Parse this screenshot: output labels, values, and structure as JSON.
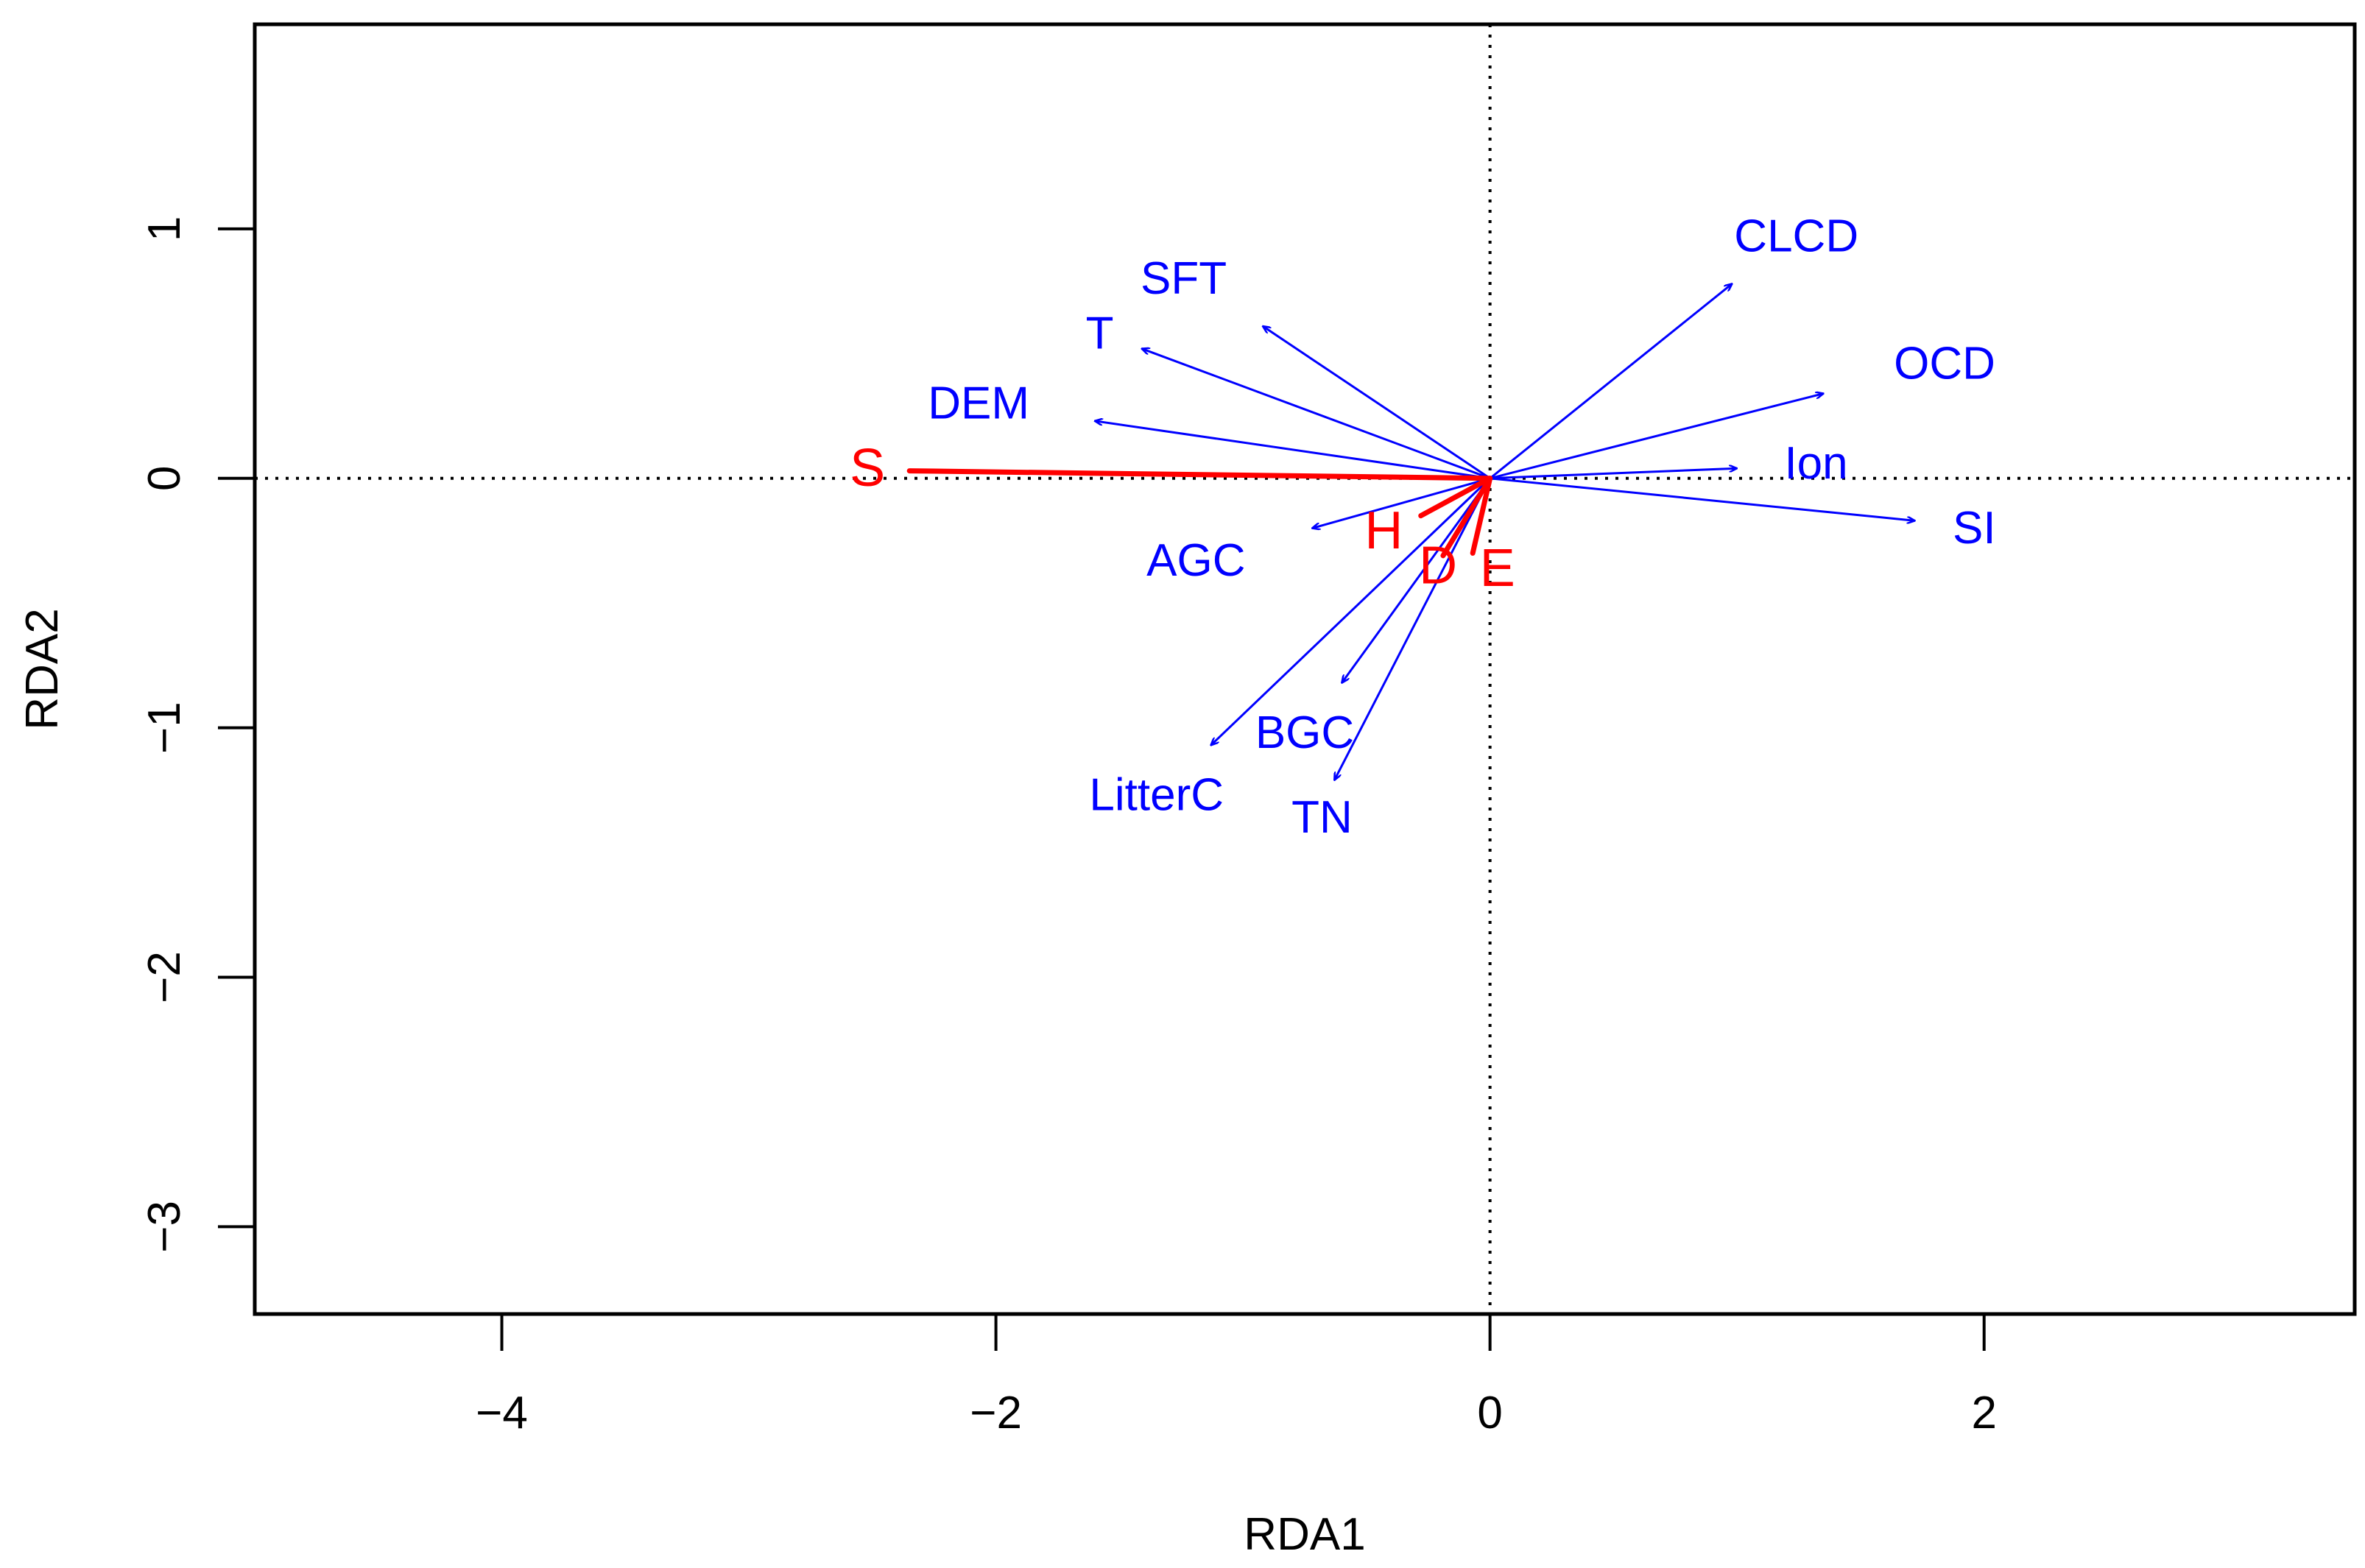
{
  "chart_data": {
    "type": "scatter",
    "subtype": "rda-biplot",
    "title": "",
    "xlabel": "RDA1",
    "ylabel": "RDA2",
    "xlim": [
      -5,
      3.5
    ],
    "ylim": [
      -3.35,
      1.82
    ],
    "x_ticks": [
      -4,
      -2,
      0,
      2
    ],
    "x_tick_labels": [
      "−4",
      "−2",
      "0",
      "2"
    ],
    "y_ticks": [
      -3,
      -2,
      -1,
      0,
      1
    ],
    "y_tick_labels": [
      "−3",
      "−2",
      "−1",
      "0",
      "1"
    ],
    "reference_lines": {
      "x": 0,
      "y": 0,
      "style": "dotted"
    },
    "grid": false,
    "colors": {
      "explanatory": "#0000ff",
      "response": "#ff0000",
      "axis": "#000000"
    },
    "explanatory_vectors": [
      {
        "name": "CLCD",
        "x": 0.98,
        "y": 0.78,
        "label_x": 1.24,
        "label_y": 0.97
      },
      {
        "name": "OCD",
        "x": 1.35,
        "y": 0.34,
        "label_x": 1.84,
        "label_y": 0.46
      },
      {
        "name": "Ion",
        "x": 1.0,
        "y": 0.04,
        "label_x": 1.32,
        "label_y": 0.06
      },
      {
        "name": "SI",
        "x": 1.72,
        "y": -0.17,
        "label_x": 1.96,
        "label_y": -0.2
      },
      {
        "name": "SFT",
        "x": -0.92,
        "y": 0.61,
        "label_x": -1.24,
        "label_y": 0.8
      },
      {
        "name": "T",
        "x": -1.41,
        "y": 0.52,
        "label_x": -1.58,
        "label_y": 0.58
      },
      {
        "name": "DEM",
        "x": -1.6,
        "y": 0.23,
        "label_x": -2.07,
        "label_y": 0.3
      },
      {
        "name": "AGC",
        "x": -0.72,
        "y": -0.2,
        "label_x": -1.19,
        "label_y": -0.33
      },
      {
        "name": "BGC",
        "x": -0.6,
        "y": -0.82,
        "label_x": -0.75,
        "label_y": -1.02
      },
      {
        "name": "LitterC",
        "x": -1.13,
        "y": -1.07,
        "label_x": -1.35,
        "label_y": -1.27
      },
      {
        "name": "TN",
        "x": -0.63,
        "y": -1.21,
        "label_x": -0.68,
        "label_y": -1.36
      }
    ],
    "response_vectors": [
      {
        "name": "S",
        "x": -2.35,
        "y": 0.03,
        "label_x": -2.52,
        "label_y": 0.04
      },
      {
        "name": "H",
        "x": -0.28,
        "y": -0.15,
        "label_x": -0.43,
        "label_y": -0.21
      },
      {
        "name": "D",
        "x": -0.19,
        "y": -0.31,
        "label_x": -0.21,
        "label_y": -0.35
      },
      {
        "name": "E",
        "x": -0.07,
        "y": -0.3,
        "label_x": 0.03,
        "label_y": -0.36
      }
    ]
  }
}
